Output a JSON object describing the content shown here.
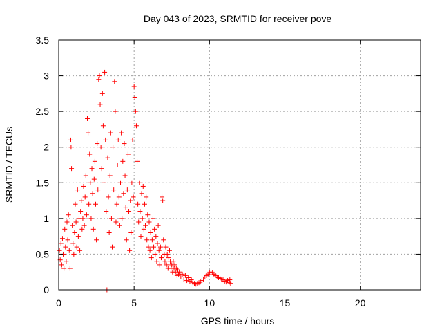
{
  "chart_data": {
    "type": "scatter",
    "title": "Day 043 of 2023, SRMTID for receiver pove",
    "xlabel": "GPS time / hours",
    "ylabel": "SRMTID / TECUs",
    "xlim": [
      0,
      24
    ],
    "ylim": [
      0,
      3.5
    ],
    "xticks": [
      0,
      5,
      10,
      15,
      20
    ],
    "yticks": [
      0,
      0.5,
      1,
      1.5,
      2,
      2.5,
      3,
      3.5
    ],
    "xtick_labels": [
      "0",
      "5",
      "10",
      "15",
      "20"
    ],
    "ytick_labels": [
      "0",
      "0.5",
      "1",
      "1.5",
      "2",
      "2.5",
      "3",
      "3.5"
    ],
    "grid": true,
    "marker": "+",
    "color": "#ff0000",
    "series": [
      {
        "name": "SRMTID",
        "points": [
          [
            0.05,
            0.55
          ],
          [
            0.1,
            0.42
          ],
          [
            0.15,
            0.65
          ],
          [
            0.2,
            0.35
          ],
          [
            0.25,
            0.72
          ],
          [
            0.3,
            0.5
          ],
          [
            0.35,
            0.3
          ],
          [
            0.4,
            0.85
          ],
          [
            0.45,
            0.6
          ],
          [
            0.5,
            0.4
          ],
          [
            0.55,
            0.95
          ],
          [
            0.6,
            0.7
          ],
          [
            0.65,
            1.05
          ],
          [
            0.7,
            0.55
          ],
          [
            0.75,
            0.3
          ],
          [
            0.8,
            2.1
          ],
          [
            0.82,
            2.0
          ],
          [
            0.85,
            1.7
          ],
          [
            0.9,
            0.9
          ],
          [
            0.95,
            0.65
          ],
          [
            1.0,
            0.5
          ],
          [
            1.05,
            0.8
          ],
          [
            1.1,
            1.2
          ],
          [
            1.15,
            0.95
          ],
          [
            1.2,
            0.6
          ],
          [
            1.25,
            1.4
          ],
          [
            1.3,
            0.75
          ],
          [
            1.35,
            1.0
          ],
          [
            1.4,
            0.55
          ],
          [
            1.45,
            1.1
          ],
          [
            1.5,
            1.25
          ],
          [
            1.55,
            0.85
          ],
          [
            1.6,
            1.0
          ],
          [
            1.65,
            1.45
          ],
          [
            1.7,
            0.9
          ],
          [
            1.75,
            1.3
          ],
          [
            1.8,
            1.6
          ],
          [
            1.85,
            1.05
          ],
          [
            1.9,
            2.4
          ],
          [
            1.95,
            2.2
          ],
          [
            2.0,
            1.2
          ],
          [
            2.05,
            1.9
          ],
          [
            2.1,
            1.5
          ],
          [
            2.15,
            1.0
          ],
          [
            2.2,
            1.7
          ],
          [
            2.25,
            1.35
          ],
          [
            2.3,
            0.85
          ],
          [
            2.35,
            1.55
          ],
          [
            2.4,
            1.8
          ],
          [
            2.45,
            1.2
          ],
          [
            2.5,
            0.7
          ],
          [
            2.55,
            2.05
          ],
          [
            2.6,
            1.4
          ],
          [
            2.65,
            2.95
          ],
          [
            2.7,
            3.0
          ],
          [
            2.75,
            2.6
          ],
          [
            2.8,
            2.0
          ],
          [
            2.85,
            1.7
          ],
          [
            2.9,
            2.75
          ],
          [
            2.95,
            2.3
          ],
          [
            3.0,
            1.5
          ],
          [
            3.05,
            3.05
          ],
          [
            3.1,
            2.1
          ],
          [
            3.15,
            1.1
          ],
          [
            3.2,
            0.0
          ],
          [
            3.25,
            1.85
          ],
          [
            3.3,
            1.3
          ],
          [
            3.35,
            0.8
          ],
          [
            3.4,
            1.6
          ],
          [
            3.45,
            2.2
          ],
          [
            3.5,
            1.0
          ],
          [
            3.55,
            0.6
          ],
          [
            3.6,
            2.0
          ],
          [
            3.65,
            1.4
          ],
          [
            3.7,
            2.92
          ],
          [
            3.75,
            2.5
          ],
          [
            3.8,
            0.95
          ],
          [
            3.85,
            1.2
          ],
          [
            3.9,
            1.75
          ],
          [
            3.95,
            2.1
          ],
          [
            4.0,
            1.3
          ],
          [
            4.05,
            0.9
          ],
          [
            4.1,
            1.5
          ],
          [
            4.15,
            2.2
          ],
          [
            4.2,
            1.0
          ],
          [
            4.25,
            1.8
          ],
          [
            4.3,
            1.35
          ],
          [
            4.35,
            2.05
          ],
          [
            4.4,
            1.6
          ],
          [
            4.45,
            1.15
          ],
          [
            4.5,
            0.7
          ],
          [
            4.55,
            1.4
          ],
          [
            4.6,
            1.9
          ],
          [
            4.65,
            1.1
          ],
          [
            4.7,
            0.55
          ],
          [
            4.75,
            1.25
          ],
          [
            4.8,
            0.8
          ],
          [
            4.85,
            1.5
          ],
          [
            4.9,
            2.1
          ],
          [
            4.95,
            1.3
          ],
          [
            5.0,
            2.85
          ],
          [
            5.05,
            2.7
          ],
          [
            5.1,
            2.5
          ],
          [
            5.15,
            2.3
          ],
          [
            5.2,
            1.8
          ],
          [
            5.25,
            1.2
          ],
          [
            5.3,
            0.95
          ],
          [
            5.35,
            1.5
          ],
          [
            5.4,
            1.1
          ],
          [
            5.45,
            0.75
          ],
          [
            5.5,
            1.35
          ],
          [
            5.55,
            1.0
          ],
          [
            5.6,
            1.45
          ],
          [
            5.65,
            0.85
          ],
          [
            5.7,
            1.2
          ],
          [
            5.75,
            0.9
          ],
          [
            5.8,
            1.3
          ],
          [
            5.85,
            0.7
          ],
          [
            5.9,
            1.05
          ],
          [
            5.95,
            0.6
          ],
          [
            6.0,
            0.95
          ],
          [
            6.05,
            0.55
          ],
          [
            6.1,
            0.8
          ],
          [
            6.15,
            0.45
          ],
          [
            6.2,
            0.7
          ],
          [
            6.25,
            1.0
          ],
          [
            6.3,
            0.6
          ],
          [
            6.35,
            0.85
          ],
          [
            6.4,
            0.5
          ],
          [
            6.45,
            0.75
          ],
          [
            6.5,
            0.4
          ],
          [
            6.55,
            0.65
          ],
          [
            6.6,
            0.9
          ],
          [
            6.65,
            0.55
          ],
          [
            6.7,
            0.35
          ],
          [
            6.75,
            0.6
          ],
          [
            6.8,
            0.45
          ],
          [
            6.85,
            1.3
          ],
          [
            6.9,
            1.25
          ],
          [
            6.95,
            0.7
          ],
          [
            7.0,
            0.5
          ],
          [
            7.05,
            0.4
          ],
          [
            7.1,
            0.6
          ],
          [
            7.15,
            0.35
          ],
          [
            7.2,
            0.5
          ],
          [
            7.25,
            0.3
          ],
          [
            7.3,
            0.45
          ],
          [
            7.35,
            0.55
          ],
          [
            7.4,
            0.4
          ],
          [
            7.45,
            0.3
          ],
          [
            7.5,
            0.35
          ],
          [
            7.55,
            0.25
          ],
          [
            7.6,
            0.4
          ],
          [
            7.65,
            0.3
          ],
          [
            7.7,
            0.35
          ],
          [
            7.75,
            0.25
          ],
          [
            7.8,
            0.3
          ],
          [
            7.85,
            0.2
          ],
          [
            7.9,
            0.28
          ],
          [
            7.95,
            0.22
          ],
          [
            8.0,
            0.25
          ],
          [
            8.1,
            0.18
          ],
          [
            8.2,
            0.22
          ],
          [
            8.3,
            0.15
          ],
          [
            8.4,
            0.2
          ],
          [
            8.5,
            0.13
          ],
          [
            8.6,
            0.17
          ],
          [
            8.7,
            0.12
          ],
          [
            8.8,
            0.14
          ],
          [
            8.9,
            0.1
          ],
          [
            9.0,
            0.09
          ],
          [
            9.1,
            0.08
          ],
          [
            9.2,
            0.09
          ],
          [
            9.3,
            0.1
          ],
          [
            9.4,
            0.11
          ],
          [
            9.5,
            0.13
          ],
          [
            9.6,
            0.15
          ],
          [
            9.7,
            0.18
          ],
          [
            9.8,
            0.2
          ],
          [
            9.9,
            0.22
          ],
          [
            10.0,
            0.24
          ],
          [
            10.1,
            0.25
          ],
          [
            10.2,
            0.24
          ],
          [
            10.3,
            0.22
          ],
          [
            10.4,
            0.2
          ],
          [
            10.5,
            0.18
          ],
          [
            10.6,
            0.17
          ],
          [
            10.7,
            0.16
          ],
          [
            10.8,
            0.15
          ],
          [
            10.9,
            0.14
          ],
          [
            11.0,
            0.12
          ],
          [
            11.1,
            0.11
          ],
          [
            11.2,
            0.13
          ],
          [
            11.3,
            0.1
          ],
          [
            11.35,
            0.14
          ],
          [
            11.4,
            0.09
          ]
        ]
      }
    ]
  }
}
